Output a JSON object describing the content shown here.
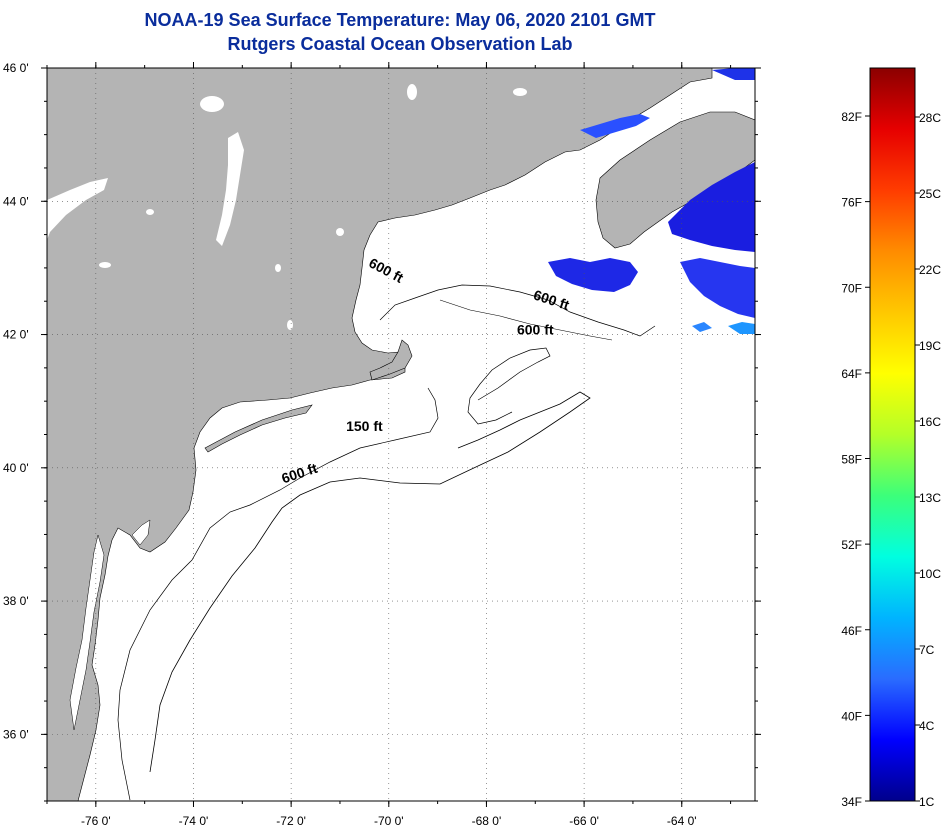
{
  "header": {
    "title_line_1": "NOAA-19 Sea Surface Temperature:  May 06, 2020 2101 GMT",
    "title_line_2": "Rutgers Coastal Ocean Observation Lab"
  },
  "map": {
    "lon_range": [
      -77,
      -62.5
    ],
    "lat_range": [
      35,
      46
    ],
    "lat_ticks": [
      {
        "value": 46,
        "label": "46 0'"
      },
      {
        "value": 44,
        "label": "44 0'"
      },
      {
        "value": 42,
        "label": "42 0'"
      },
      {
        "value": 40,
        "label": "40 0'"
      },
      {
        "value": 38,
        "label": "38 0'"
      },
      {
        "value": 36,
        "label": "36 0'"
      }
    ],
    "lon_ticks": [
      {
        "value": -76,
        "label": "-76 0'"
      },
      {
        "value": -74,
        "label": "-74 0'"
      },
      {
        "value": -72,
        "label": "-72 0'"
      },
      {
        "value": -70,
        "label": "-70 0'"
      },
      {
        "value": -68,
        "label": "-68 0'"
      },
      {
        "value": -66,
        "label": "-66 0'"
      },
      {
        "value": -64,
        "label": "-64 0'"
      }
    ],
    "grid_lines": "dotted",
    "land_color": "#b4b4b4",
    "water_color": "#ffffff",
    "contour_labels": [
      {
        "text": "600 ft",
        "lon": -70.1,
        "lat": 42.9,
        "angle": 28
      },
      {
        "text": "600 ft",
        "lon": -66.7,
        "lat": 42.45,
        "angle": 18
      },
      {
        "text": "600 ft",
        "lon": -67.0,
        "lat": 42.0,
        "angle": 0
      },
      {
        "text": "150 ft",
        "lon": -70.5,
        "lat": 40.55,
        "angle": 0
      },
      {
        "text": "600 ft",
        "lon": -71.8,
        "lat": 39.85,
        "angle": -18
      }
    ]
  },
  "colorbar": {
    "colors_bottom_to_top": [
      "#00008b",
      "#0000ff",
      "#2a6cff",
      "#00b4ff",
      "#00ffe0",
      "#3cff7a",
      "#b4ff28",
      "#ffff00",
      "#ffc800",
      "#ff8c00",
      "#ff3c00",
      "#e60000",
      "#8b0000"
    ],
    "fahrenheit_labels": [
      "34F",
      "40F",
      "46F",
      "52F",
      "58F",
      "64F",
      "70F",
      "76F",
      "82F"
    ],
    "celsius_labels": [
      "1C",
      "4C",
      "7C",
      "10C",
      "13C",
      "16C",
      "19C",
      "22C",
      "25C",
      "28C"
    ]
  }
}
